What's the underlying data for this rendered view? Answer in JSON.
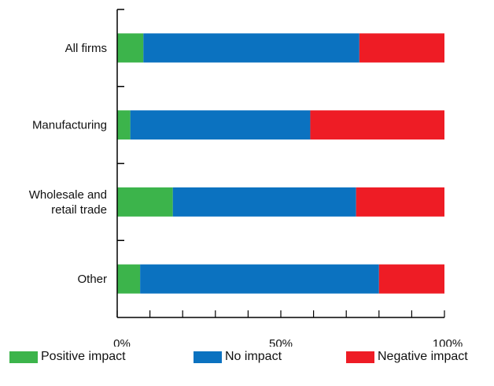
{
  "chart_data": {
    "type": "bar",
    "orientation": "horizontal",
    "stacked": true,
    "categories": [
      "All firms",
      "Manufacturing",
      "Wholesale and retail trade",
      "Other"
    ],
    "category_lines": [
      [
        "All firms"
      ],
      [
        "Manufacturing"
      ],
      [
        "Wholesale and",
        "retail trade"
      ],
      [
        "Other"
      ]
    ],
    "series": [
      {
        "name": "Positive impact",
        "color": "#3cb44b",
        "values": [
          8,
          4,
          17,
          7
        ]
      },
      {
        "name": "No impact",
        "color": "#0b72c0",
        "values": [
          66,
          55,
          56,
          73
        ]
      },
      {
        "name": "Negative impact",
        "color": "#ee1c25",
        "values": [
          26,
          41,
          27,
          20
        ]
      }
    ],
    "xlim": [
      0,
      100
    ],
    "x_ticks": [
      0,
      10,
      20,
      30,
      40,
      50,
      60,
      70,
      80,
      90,
      100
    ],
    "x_tick_labels": [
      {
        "value": 0,
        "label": "0%"
      },
      {
        "value": 50,
        "label": "50%"
      },
      {
        "value": 100,
        "label": "100%"
      }
    ],
    "legend_position": "bottom",
    "grid": false
  },
  "legend": {
    "items": [
      {
        "label": "Positive impact",
        "color": "#3cb44b"
      },
      {
        "label": "No impact",
        "color": "#0b72c0"
      },
      {
        "label": "Negative impact",
        "color": "#ee1c25"
      }
    ]
  }
}
